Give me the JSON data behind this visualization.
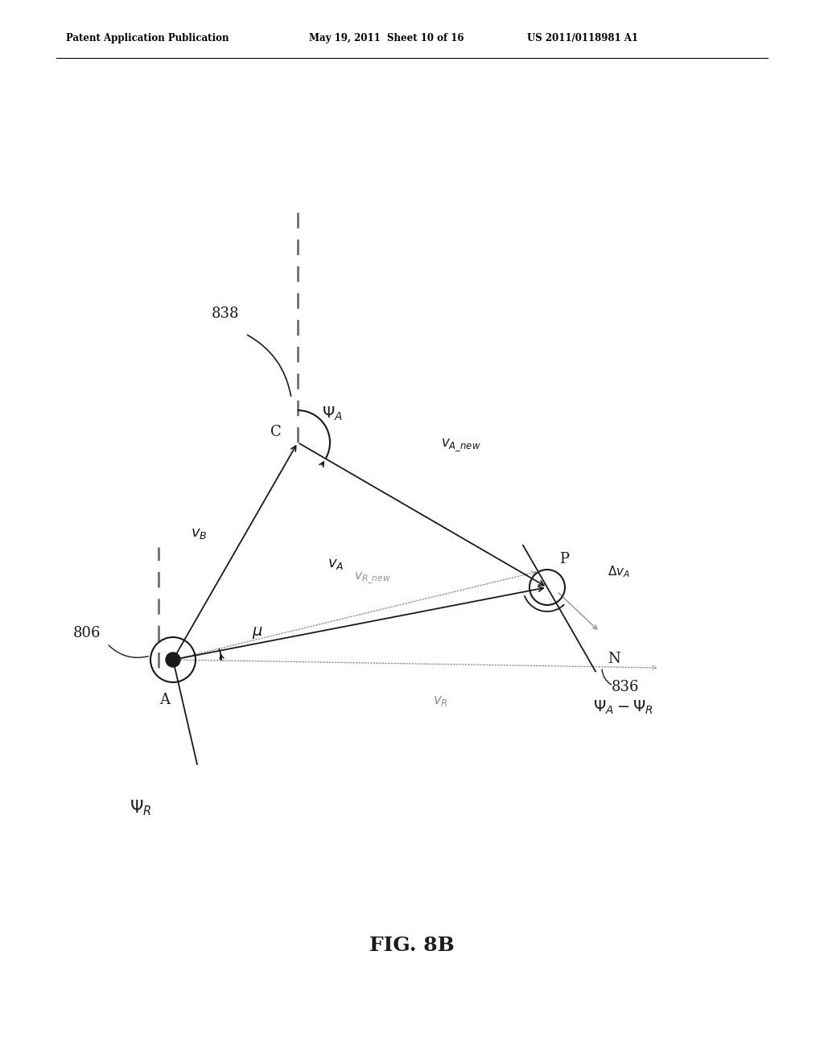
{
  "header_left": "Patent Application Publication",
  "header_mid": "May 19, 2011  Sheet 10 of 16",
  "header_right": "US 2011/0118981 A1",
  "fig_label": "FIG. 8B",
  "label_838": "838",
  "label_806": "806",
  "label_836": "836",
  "point_A": [
    0.255,
    0.365
  ],
  "point_C": [
    0.415,
    0.65
  ],
  "point_P": [
    0.72,
    0.4
  ],
  "bg_color": "#ffffff",
  "line_color": "#1a1a1a",
  "gray_color": "#909090",
  "dashed_color": "#707070"
}
